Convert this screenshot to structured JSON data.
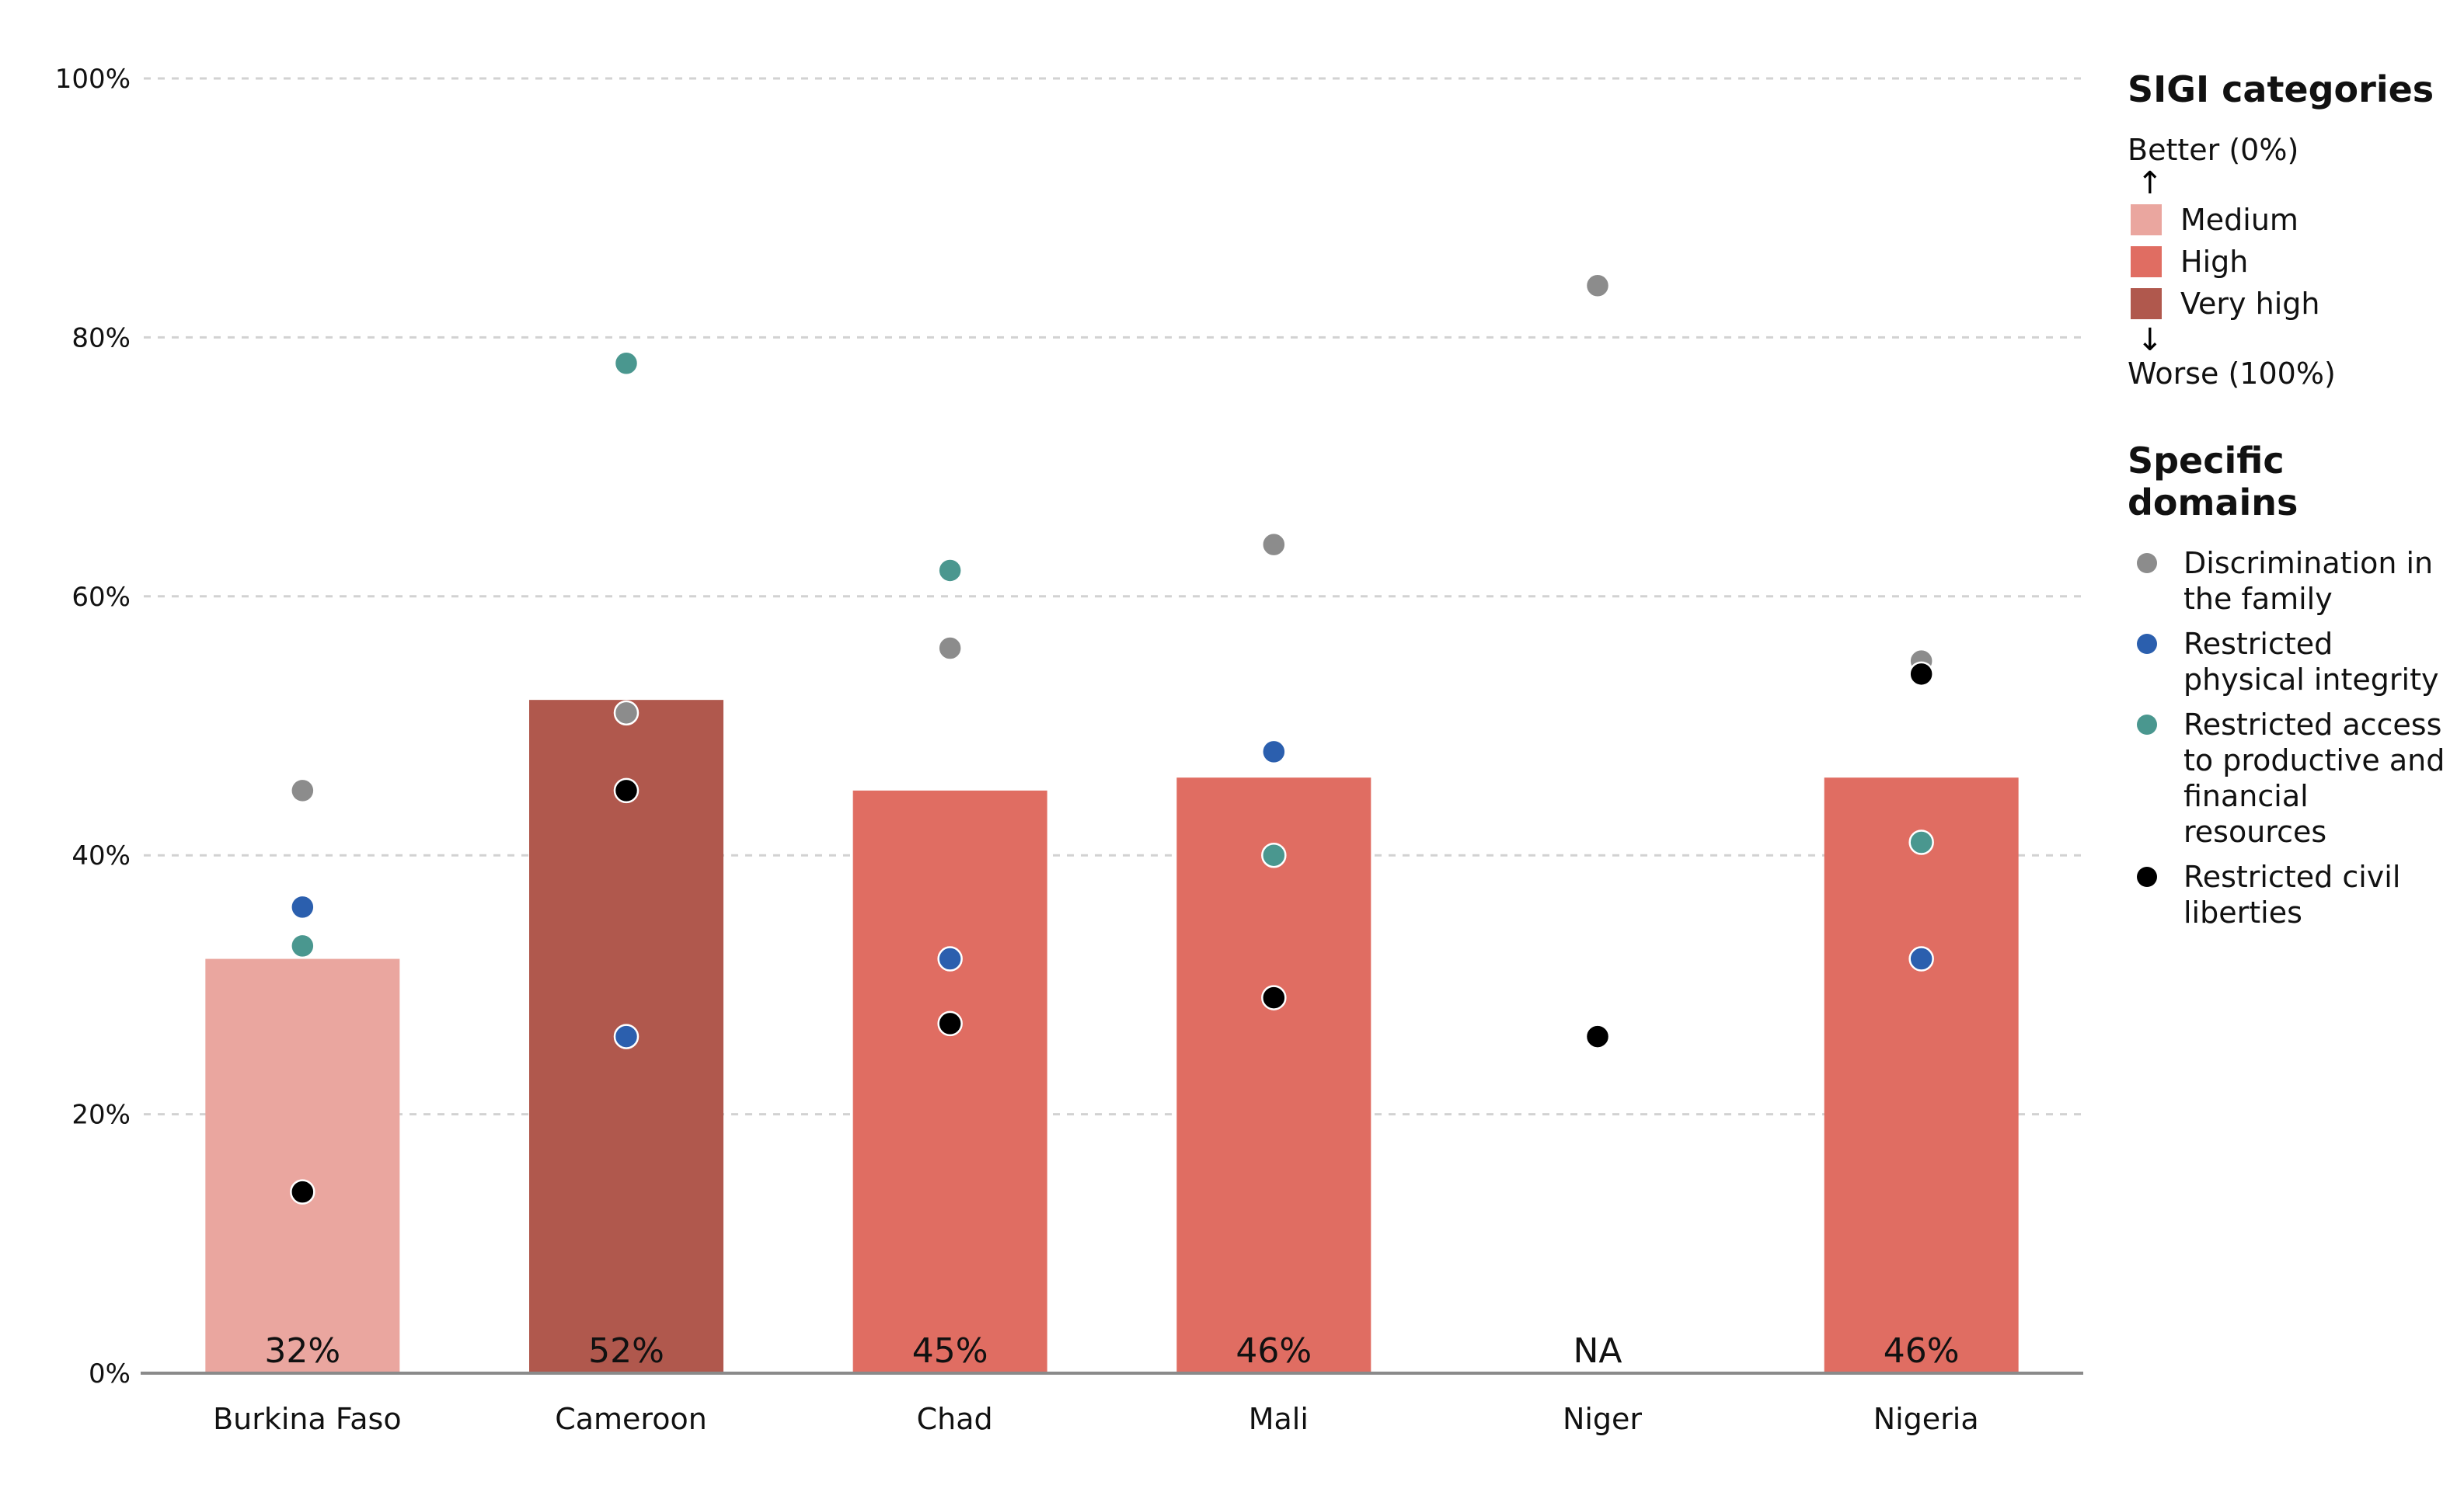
{
  "chart_data": {
    "type": "bar",
    "categories": [
      "Burkina Faso",
      "Cameroon",
      "Chad",
      "Mali",
      "Niger",
      "Nigeria"
    ],
    "bar_values": [
      32,
      52,
      45,
      46,
      null,
      46
    ],
    "bar_labels": [
      "32%",
      "52%",
      "45%",
      "46%",
      "NA",
      "46%"
    ],
    "bar_category": [
      "Medium",
      "Very high",
      "High",
      "High",
      null,
      "High"
    ],
    "y_ticks": [
      "0%",
      "20%",
      "40%",
      "60%",
      "80%",
      "100%"
    ],
    "ylim": [
      0,
      100
    ],
    "grid": true,
    "points": [
      {
        "name": "Discrimination in the family",
        "color": "#8c8c8c",
        "values": [
          45,
          51,
          56,
          64,
          84,
          55
        ]
      },
      {
        "name": "Restricted physical integrity",
        "color": "#2b5fae",
        "values": [
          36,
          26,
          32,
          48,
          null,
          32
        ]
      },
      {
        "name": "Restricted access to productive and financial resources",
        "color": "#4a978f",
        "values": [
          33,
          78,
          62,
          40,
          null,
          41
        ]
      },
      {
        "name": "Restricted civil liberties",
        "color": "#000000",
        "values": [
          14,
          45,
          27,
          29,
          26,
          54
        ]
      }
    ]
  },
  "legend": {
    "categories_title": "SIGI categories",
    "better": "Better (0%)",
    "worse": "Worse (100%)",
    "arrow_up": "↑",
    "arrow_down": "↓",
    "categories": [
      {
        "label": "Medium",
        "color": "#eaa69f"
      },
      {
        "label": "High",
        "color": "#e06d62"
      },
      {
        "label": "Very high",
        "color": "#b0584d"
      }
    ],
    "domains_title": "Specific domains",
    "domains": [
      {
        "label": "Discrimination in the family",
        "color": "#8c8c8c"
      },
      {
        "label": "Restricted physical integrity",
        "color": "#2b5fae"
      },
      {
        "label": "Restricted access to productive and financial resources",
        "color": "#4a978f"
      },
      {
        "label": "Restricted civil liberties",
        "color": "#000000"
      }
    ]
  }
}
